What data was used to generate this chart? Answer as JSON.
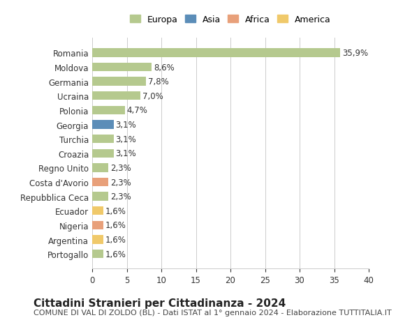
{
  "countries": [
    "Romania",
    "Moldova",
    "Germania",
    "Ucraina",
    "Polonia",
    "Georgia",
    "Turchia",
    "Croazia",
    "Regno Unito",
    "Costa d'Avorio",
    "Repubblica Ceca",
    "Ecuador",
    "Nigeria",
    "Argentina",
    "Portogallo"
  ],
  "values": [
    35.9,
    8.6,
    7.8,
    7.0,
    4.7,
    3.1,
    3.1,
    3.1,
    2.3,
    2.3,
    2.3,
    1.6,
    1.6,
    1.6,
    1.6
  ],
  "labels": [
    "35,9%",
    "8,6%",
    "7,8%",
    "7,0%",
    "4,7%",
    "3,1%",
    "3,1%",
    "3,1%",
    "2,3%",
    "2,3%",
    "2,3%",
    "1,6%",
    "1,6%",
    "1,6%",
    "1,6%"
  ],
  "continents": [
    "Europa",
    "Europa",
    "Europa",
    "Europa",
    "Europa",
    "Asia",
    "Europa",
    "Europa",
    "Europa",
    "Africa",
    "Europa",
    "America",
    "Africa",
    "America",
    "Europa"
  ],
  "continent_colors": {
    "Europa": "#b5c98e",
    "Asia": "#5b8db8",
    "Africa": "#e8a07a",
    "America": "#f0c96a"
  },
  "legend_order": [
    "Europa",
    "Asia",
    "Africa",
    "America"
  ],
  "title": "Cittadini Stranieri per Cittadinanza - 2024",
  "subtitle": "COMUNE DI VAL DI ZOLDO (BL) - Dati ISTAT al 1° gennaio 2024 - Elaborazione TUTTITALIA.IT",
  "xlim": [
    0,
    40
  ],
  "xticks": [
    0,
    5,
    10,
    15,
    20,
    25,
    30,
    35,
    40
  ],
  "background_color": "#ffffff",
  "grid_color": "#cccccc",
  "bar_height": 0.6,
  "label_fontsize": 8.5,
  "title_fontsize": 11,
  "subtitle_fontsize": 8,
  "tick_fontsize": 8.5,
  "legend_fontsize": 9
}
